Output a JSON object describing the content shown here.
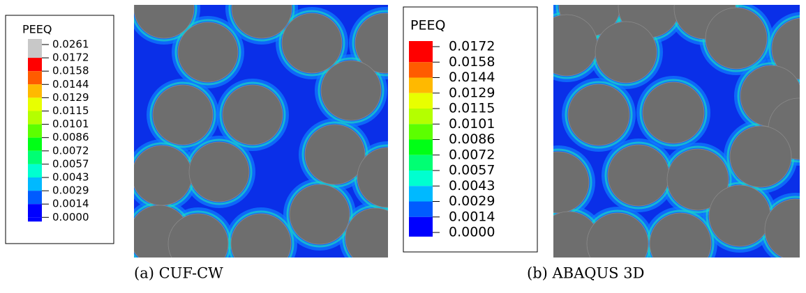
{
  "panels": [
    {
      "legend": {
        "title": "PEEQ",
        "labels": [
          "0.0261",
          "0.0172",
          "0.0158",
          "0.0144",
          "0.0129",
          "0.0115",
          "0.0101",
          "0.0086",
          "0.0072",
          "0.0057",
          "0.0043",
          "0.0029",
          "0.0014",
          "0.0000"
        ],
        "colors": [
          "#c8c8c8",
          "#ff0000",
          "#ff5c00",
          "#ffb900",
          "#e8ff00",
          "#b4ff00",
          "#5cff00",
          "#00ff16",
          "#00ff73",
          "#00ffd0",
          "#00b9ff",
          "#005cff",
          "#0000ff"
        ]
      },
      "caption": "(a) CUF-CW"
    },
    {
      "legend": {
        "title": "PEEQ",
        "labels": [
          "0.0172",
          "0.0158",
          "0.0144",
          "0.0129",
          "0.0115",
          "0.0101",
          "0.0086",
          "0.0072",
          "0.0057",
          "0.0043",
          "0.0029",
          "0.0014",
          "0.0000"
        ],
        "colors": [
          "#ff0000",
          "#ff5c00",
          "#ffb900",
          "#e8ff00",
          "#b4ff00",
          "#5cff00",
          "#00ff16",
          "#00ff73",
          "#00ffd0",
          "#00b9ff",
          "#005cff",
          "#0000ff"
        ]
      },
      "caption": "(b) ABAQUS 3D"
    }
  ]
}
